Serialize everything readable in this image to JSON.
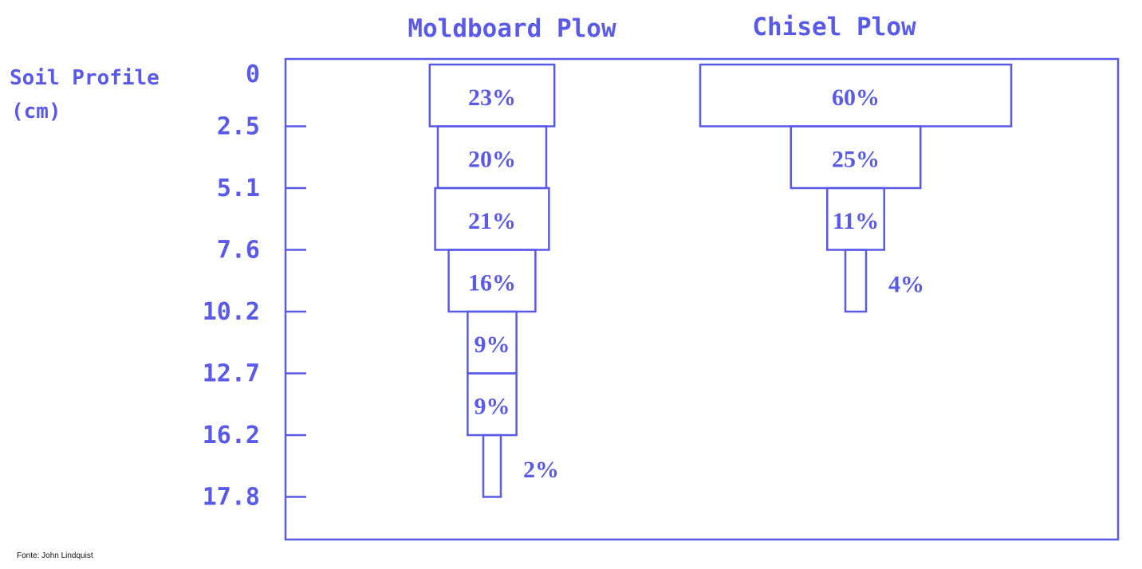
{
  "colors": {
    "ink": "#5a5ae8",
    "background": "#ffffff",
    "source_text": "#111111"
  },
  "source": "Fonte: John Lindquist",
  "chart_data": {
    "type": "bar",
    "orientation": "horizontal-centered-depth-profile",
    "ylabel_line1": "Soil Profile",
    "ylabel_line2": "(cm)",
    "depth_ticks": [
      "0",
      "2.5",
      "5.1",
      "7.6",
      "10.2",
      "12.7",
      "16.2",
      "17.8"
    ],
    "value_unit": "%",
    "grid": false,
    "legend": "none",
    "series": [
      {
        "name": "Moldboard Plow",
        "values": [
          23,
          20,
          21,
          16,
          9,
          9,
          2
        ]
      },
      {
        "name": "Chisel Plow",
        "values": [
          60,
          25,
          11,
          4
        ]
      }
    ]
  }
}
